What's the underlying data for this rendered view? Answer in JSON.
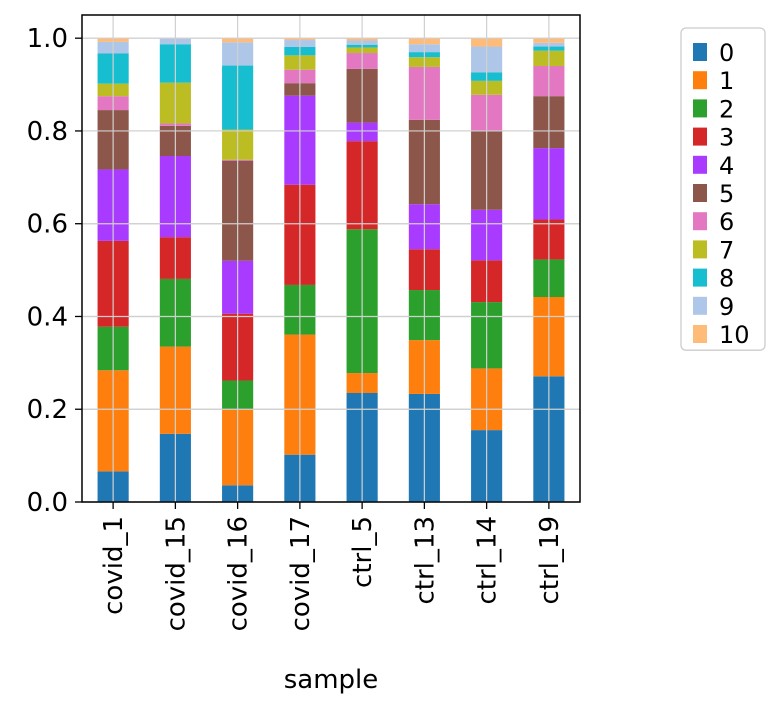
{
  "chart_data": {
    "type": "bar",
    "stacked": true,
    "xlabel": "sample",
    "ylabel": "",
    "title": "",
    "ylim": [
      0,
      1.05
    ],
    "yticks": [
      0.0,
      0.2,
      0.4,
      0.6,
      0.8,
      1.0
    ],
    "ytick_labels": [
      "0.0",
      "0.2",
      "0.4",
      "0.6",
      "0.8",
      "1.0"
    ],
    "grid": true,
    "legend_position": "right",
    "categories": [
      "covid_1",
      "covid_15",
      "covid_16",
      "covid_17",
      "ctrl_5",
      "ctrl_13",
      "ctrl_14",
      "ctrl_19"
    ],
    "series": [
      {
        "name": "0",
        "color": "#1f77b4",
        "values": [
          0.066,
          0.147,
          0.036,
          0.102,
          0.235,
          0.233,
          0.155,
          0.271
        ]
      },
      {
        "name": "1",
        "color": "#ff7f0e",
        "values": [
          0.218,
          0.188,
          0.164,
          0.259,
          0.043,
          0.116,
          0.133,
          0.171
        ]
      },
      {
        "name": "2",
        "color": "#2ca02c",
        "values": [
          0.094,
          0.146,
          0.062,
          0.107,
          0.31,
          0.108,
          0.143,
          0.081
        ]
      },
      {
        "name": "3",
        "color": "#d62728",
        "values": [
          0.185,
          0.09,
          0.144,
          0.216,
          0.19,
          0.088,
          0.09,
          0.086
        ]
      },
      {
        "name": "4",
        "color": "#a83bff",
        "values": [
          0.154,
          0.175,
          0.114,
          0.192,
          0.04,
          0.097,
          0.109,
          0.154
        ]
      },
      {
        "name": "5",
        "color": "#8c564b",
        "values": [
          0.128,
          0.065,
          0.216,
          0.027,
          0.116,
          0.182,
          0.171,
          0.112
        ]
      },
      {
        "name": "6",
        "color": "#e377c2",
        "values": [
          0.03,
          0.005,
          0.002,
          0.029,
          0.034,
          0.114,
          0.077,
          0.065
        ]
      },
      {
        "name": "7",
        "color": "#bcbd22",
        "values": [
          0.027,
          0.088,
          0.065,
          0.031,
          0.012,
          0.021,
          0.03,
          0.033
        ]
      },
      {
        "name": "8",
        "color": "#17becf",
        "values": [
          0.065,
          0.083,
          0.138,
          0.018,
          0.006,
          0.011,
          0.018,
          0.009
        ]
      },
      {
        "name": "9",
        "color": "#aec7e8",
        "values": [
          0.025,
          0.012,
          0.05,
          0.015,
          0.009,
          0.017,
          0.056,
          0.008
        ]
      },
      {
        "name": "10",
        "color": "#ffbb78",
        "values": [
          0.008,
          0.001,
          0.009,
          0.004,
          0.005,
          0.013,
          0.018,
          0.01
        ]
      }
    ]
  }
}
